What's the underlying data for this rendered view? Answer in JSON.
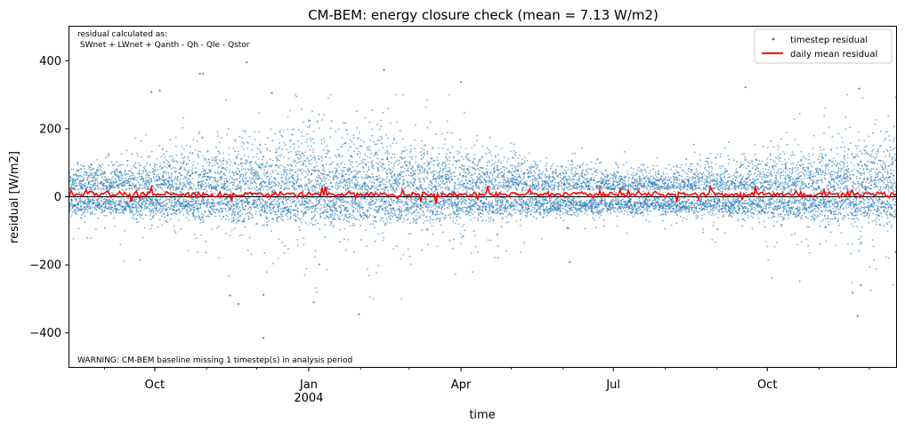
{
  "chart_data": {
    "type": "scatter",
    "title": "CM-BEM: energy closure check (mean = 7.13 W/m2)",
    "xlabel": "time",
    "ylabel": "residual [W/m2]",
    "x_range": [
      "2003-08-11",
      "2004-12-17"
    ],
    "ylim": [
      -500,
      500
    ],
    "y_ticks": [
      -400,
      -200,
      0,
      200,
      400
    ],
    "y_tick_labels": [
      "−400",
      "−200",
      "0",
      "200",
      "400"
    ],
    "x_ticks": [
      {
        "date": "2003-10-01",
        "label": "Oct",
        "sublabel": ""
      },
      {
        "date": "2004-01-01",
        "label": "Jan",
        "sublabel": "2004"
      },
      {
        "date": "2004-04-01",
        "label": "Apr",
        "sublabel": ""
      },
      {
        "date": "2004-07-01",
        "label": "Jul",
        "sublabel": ""
      },
      {
        "date": "2004-10-01",
        "label": "Oct",
        "sublabel": ""
      }
    ],
    "grid": false,
    "legend_position": "top-right",
    "annotation_top": [
      "residual calculated as:",
      " SWnet + LWnet + Qanth - Qh - Qle - Qstor"
    ],
    "annotation_bottom": "WARNING: CM-BEM baseline missing 1 timestep(s) in analysis period",
    "mean": 7.13,
    "series": [
      {
        "name": "timestep residual",
        "kind": "scatter",
        "color": "#1f77b4",
        "note": "dense half-hourly residuals, approx. -50 to +150 typical, extremes -415 to +395",
        "sample_points": [
          [
            "2003-10-28",
            362
          ],
          [
            "2003-10-30",
            362
          ],
          [
            "2003-11-25",
            395
          ],
          [
            "2003-12-10",
            305
          ],
          [
            "2003-09-29",
            308
          ],
          [
            "2003-10-04",
            312
          ],
          [
            "2004-02-15",
            373
          ],
          [
            "2004-04-01",
            337
          ],
          [
            "2004-09-18",
            322
          ],
          [
            "2004-11-25",
            318
          ],
          [
            "2004-12-17",
            292
          ],
          [
            "2003-11-15",
            -290
          ],
          [
            "2003-11-20",
            -315
          ],
          [
            "2003-12-05",
            -415
          ],
          [
            "2003-12-05",
            -288
          ],
          [
            "2004-01-04",
            -310
          ],
          [
            "2004-01-31",
            -345
          ],
          [
            "2004-06-05",
            -192
          ],
          [
            "2004-11-24",
            -350
          ],
          [
            "2004-11-21",
            -282
          ],
          [
            "2004-11-26",
            -260
          ]
        ]
      },
      {
        "name": "daily mean residual",
        "kind": "line",
        "color": "#ff0000",
        "note": "daily mean residual fluctuates near +7 W/m2 (range about -20 to +30)"
      }
    ]
  }
}
